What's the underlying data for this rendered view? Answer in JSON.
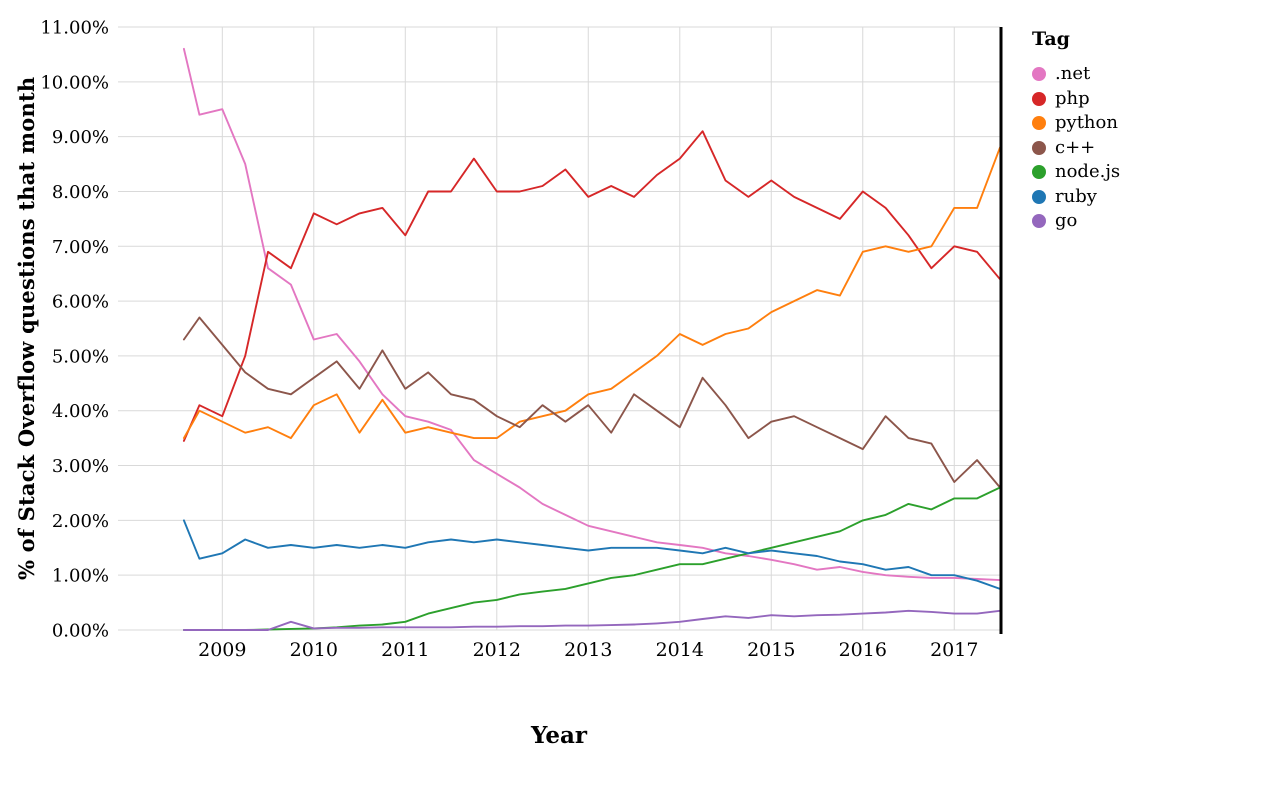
{
  "chart_data": {
    "type": "line",
    "title": "",
    "xlabel": "Year",
    "ylabel": "% of Stack Overflow questions that month",
    "legend_title": "Tag",
    "legend_position": "top-right",
    "grid": true,
    "grid_color": "#d9d9d9",
    "axis_line_color": "#000000",
    "background_color": "#ffffff",
    "xlim": [
      2007.86,
      2017.5
    ],
    "ylim": [
      0,
      11
    ],
    "x_ticks": [
      {
        "value": 2009,
        "label": "2009"
      },
      {
        "value": 2010,
        "label": "2010"
      },
      {
        "value": 2011,
        "label": "2011"
      },
      {
        "value": 2012,
        "label": "2012"
      },
      {
        "value": 2013,
        "label": "2013"
      },
      {
        "value": 2014,
        "label": "2014"
      },
      {
        "value": 2015,
        "label": "2015"
      },
      {
        "value": 2016,
        "label": "2016"
      },
      {
        "value": 2017,
        "label": "2017"
      }
    ],
    "y_ticks": [
      {
        "value": 0,
        "label": "0.00%"
      },
      {
        "value": 1,
        "label": "1.00%"
      },
      {
        "value": 2,
        "label": "2.00%"
      },
      {
        "value": 3,
        "label": "3.00%"
      },
      {
        "value": 4,
        "label": "4.00%"
      },
      {
        "value": 5,
        "label": "5.00%"
      },
      {
        "value": 6,
        "label": "6.00%"
      },
      {
        "value": 7,
        "label": "7.00%"
      },
      {
        "value": 8,
        "label": "8.00%"
      },
      {
        "value": 9,
        "label": "9.00%"
      },
      {
        "value": 10,
        "label": "10.00%"
      },
      {
        "value": 11,
        "label": "11.00%"
      }
    ],
    "x": [
      2008.58,
      2008.75,
      2009.0,
      2009.25,
      2009.5,
      2009.75,
      2010.0,
      2010.25,
      2010.5,
      2010.75,
      2011.0,
      2011.25,
      2011.5,
      2011.75,
      2012.0,
      2012.25,
      2012.5,
      2012.75,
      2013.0,
      2013.25,
      2013.5,
      2013.75,
      2014.0,
      2014.25,
      2014.5,
      2014.75,
      2015.0,
      2015.25,
      2015.5,
      2015.75,
      2016.0,
      2016.25,
      2016.5,
      2016.75,
      2017.0,
      2017.25,
      2017.5
    ],
    "series": [
      {
        "name": ".net",
        "color": "#e377c2",
        "values": [
          10.6,
          9.4,
          9.5,
          8.5,
          6.6,
          6.3,
          5.3,
          5.4,
          4.9,
          4.3,
          3.9,
          3.8,
          3.65,
          3.1,
          2.85,
          2.6,
          2.3,
          2.1,
          1.9,
          1.8,
          1.7,
          1.6,
          1.55,
          1.5,
          1.4,
          1.35,
          1.28,
          1.2,
          1.1,
          1.15,
          1.06,
          1.0,
          0.97,
          0.95,
          0.95,
          0.93,
          0.91
        ]
      },
      {
        "name": "php",
        "color": "#d62728",
        "values": [
          3.45,
          4.1,
          3.9,
          5.0,
          6.9,
          6.6,
          7.6,
          7.4,
          7.6,
          7.7,
          7.2,
          8.0,
          8.0,
          8.6,
          8.0,
          8.0,
          8.1,
          8.4,
          7.9,
          8.1,
          7.9,
          8.3,
          8.6,
          9.1,
          8.2,
          7.9,
          8.2,
          7.9,
          7.7,
          7.5,
          8.0,
          7.7,
          7.2,
          6.6,
          7.0,
          6.9,
          6.4
        ]
      },
      {
        "name": "python",
        "color": "#ff7f0e",
        "values": [
          3.5,
          4.0,
          3.8,
          3.6,
          3.7,
          3.5,
          4.1,
          4.3,
          3.6,
          4.2,
          3.6,
          3.7,
          3.6,
          3.5,
          3.5,
          3.8,
          3.9,
          4.0,
          4.3,
          4.4,
          4.7,
          5.0,
          5.4,
          5.2,
          5.4,
          5.5,
          5.8,
          6.0,
          6.2,
          6.1,
          6.9,
          7.0,
          6.9,
          7.0,
          7.7,
          7.7,
          8.8
        ]
      },
      {
        "name": "c++",
        "color": "#8c564b",
        "values": [
          5.3,
          5.7,
          5.2,
          4.7,
          4.4,
          4.3,
          4.6,
          4.9,
          4.4,
          5.1,
          4.4,
          4.7,
          4.3,
          4.2,
          3.9,
          3.7,
          4.1,
          3.8,
          4.1,
          3.6,
          4.3,
          4.0,
          3.7,
          4.6,
          4.1,
          3.5,
          3.8,
          3.9,
          3.7,
          3.5,
          3.3,
          3.9,
          3.5,
          3.4,
          2.7,
          3.1,
          2.6
        ]
      },
      {
        "name": "node.js",
        "color": "#2ca02c",
        "values": [
          0,
          0,
          0,
          0,
          0.01,
          0.02,
          0.03,
          0.05,
          0.08,
          0.1,
          0.15,
          0.3,
          0.4,
          0.5,
          0.55,
          0.65,
          0.7,
          0.75,
          0.85,
          0.95,
          1.0,
          1.1,
          1.2,
          1.2,
          1.3,
          1.4,
          1.5,
          1.6,
          1.7,
          1.8,
          2.0,
          2.1,
          2.3,
          2.2,
          2.4,
          2.4,
          2.6
        ]
      },
      {
        "name": "ruby",
        "color": "#1f77b4",
        "values": [
          2.0,
          1.3,
          1.4,
          1.65,
          1.5,
          1.55,
          1.5,
          1.55,
          1.5,
          1.55,
          1.5,
          1.6,
          1.65,
          1.6,
          1.65,
          1.6,
          1.55,
          1.5,
          1.45,
          1.5,
          1.5,
          1.5,
          1.45,
          1.4,
          1.5,
          1.4,
          1.45,
          1.4,
          1.35,
          1.25,
          1.2,
          1.1,
          1.15,
          1.0,
          1.0,
          0.9,
          0.75
        ]
      },
      {
        "name": "go",
        "color": "#9467bd",
        "values": [
          0,
          0,
          0,
          0,
          0,
          0.15,
          0.03,
          0.04,
          0.04,
          0.05,
          0.05,
          0.05,
          0.05,
          0.06,
          0.06,
          0.07,
          0.07,
          0.08,
          0.08,
          0.09,
          0.1,
          0.12,
          0.15,
          0.2,
          0.25,
          0.22,
          0.27,
          0.25,
          0.27,
          0.28,
          0.3,
          0.32,
          0.35,
          0.33,
          0.3,
          0.3,
          0.35
        ]
      }
    ]
  }
}
